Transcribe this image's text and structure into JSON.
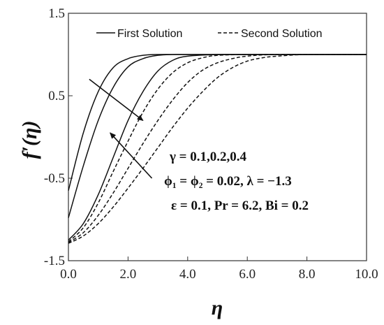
{
  "chart_data": {
    "type": "line",
    "title": "",
    "xlabel": "η",
    "ylabel": "f′(η)",
    "xlim": [
      0,
      10
    ],
    "ylim": [
      -1.5,
      1.5
    ],
    "xticks": [
      "0.0",
      "2.0",
      "4.0",
      "6.0",
      "8.0",
      "10.0"
    ],
    "yticks": [
      "1.5",
      "0.5",
      "-0.5",
      "-1.5"
    ],
    "legend": {
      "placement": "top",
      "entries": [
        {
          "label": "First Solution",
          "style": "solid"
        },
        {
          "label": "Second Solution",
          "style": "dashed"
        }
      ]
    },
    "grid": false,
    "series": [
      {
        "style": "solid",
        "x": [
          0,
          0.5,
          1.0,
          1.5,
          2.0,
          2.5,
          3.0,
          4.0,
          6.0,
          10.0
        ],
        "y": [
          -0.65,
          0.05,
          0.55,
          0.84,
          0.95,
          0.99,
          1.0,
          1.0,
          1.0,
          1.0
        ]
      },
      {
        "style": "solid",
        "x": [
          0,
          0.5,
          1.0,
          1.5,
          2.0,
          2.5,
          3.0,
          3.5,
          4.0,
          6.0,
          10.0
        ],
        "y": [
          -0.98,
          -0.35,
          0.2,
          0.6,
          0.85,
          0.95,
          0.99,
          1.0,
          1.0,
          1.0,
          1.0
        ]
      },
      {
        "style": "solid",
        "x": [
          0,
          0.5,
          1.0,
          1.5,
          2.0,
          2.5,
          3.0,
          3.5,
          4.0,
          5.0,
          6.0,
          10.0
        ],
        "y": [
          -1.25,
          -1.05,
          -0.7,
          -0.25,
          0.2,
          0.55,
          0.8,
          0.93,
          0.98,
          1.0,
          1.0,
          1.0
        ]
      },
      {
        "style": "dashed",
        "x": [
          0,
          0.5,
          1.0,
          1.5,
          2.0,
          2.5,
          3.0,
          3.5,
          4.0,
          4.5,
          5.0,
          6.0,
          7.0,
          10.0
        ],
        "y": [
          -1.27,
          -1.1,
          -0.8,
          -0.42,
          -0.05,
          0.3,
          0.58,
          0.78,
          0.9,
          0.96,
          0.99,
          1.0,
          1.0,
          1.0
        ]
      },
      {
        "style": "dashed",
        "x": [
          0,
          0.5,
          1.0,
          1.5,
          2.0,
          2.5,
          3.0,
          3.5,
          4.0,
          4.5,
          5.0,
          5.5,
          6.0,
          7.0,
          10.0
        ],
        "y": [
          -1.28,
          -1.16,
          -0.95,
          -0.68,
          -0.38,
          -0.08,
          0.2,
          0.45,
          0.66,
          0.81,
          0.9,
          0.95,
          0.98,
          1.0,
          1.0
        ]
      },
      {
        "style": "dashed",
        "x": [
          0,
          0.5,
          1.0,
          1.5,
          2.0,
          2.5,
          3.0,
          3.5,
          4.0,
          4.5,
          5.0,
          5.5,
          6.0,
          6.5,
          7.0,
          8.0,
          10.0
        ],
        "y": [
          -1.29,
          -1.2,
          -1.05,
          -0.85,
          -0.62,
          -0.38,
          -0.13,
          0.12,
          0.35,
          0.55,
          0.72,
          0.84,
          0.92,
          0.96,
          0.98,
          1.0,
          1.0
        ]
      }
    ],
    "annotations": [
      "γ = 0.1,0.2,0.4",
      "ϕ₁ = ϕ₂ = 0.02, λ = −1.3",
      "ε = 0.1, Pr = 6.2, Bi = 0.2"
    ],
    "arrows": [
      {
        "from": [
          0.7,
          0.7
        ],
        "to": [
          2.5,
          0.2
        ]
      },
      {
        "from": [
          2.8,
          -0.5
        ],
        "to": [
          1.4,
          0.05
        ]
      }
    ]
  }
}
